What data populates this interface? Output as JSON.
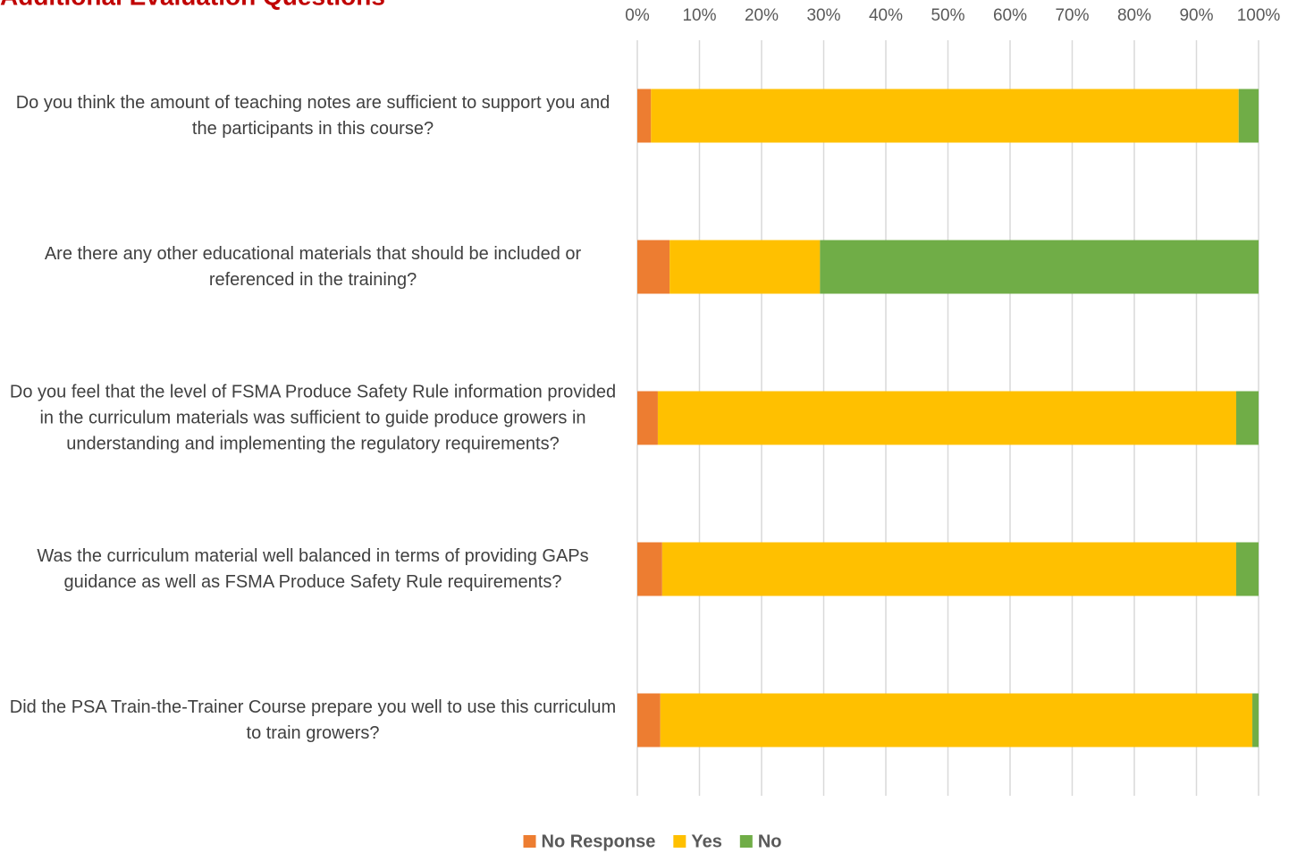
{
  "chart_data": {
    "type": "stacked_barh",
    "title": "Additional Evaluation Questions",
    "categories": [
      "Do you think the amount of teaching notes are sufficient to support you and the participants in this course?",
      "Are there any other educational materials that should be included or referenced in the training?",
      "Do you feel that the level of FSMA Produce Safety Rule information provided in the curriculum materials was sufficient to guide produce growers in understanding and implementing the regulatory requirements?",
      "Was the curriculum material well balanced in terms of providing GAPs guidance as well as FSMA Produce Safety Rule requirements?",
      "Did the PSA Train-the-Trainer Course prepare you well to use this curriculum to train growers?"
    ],
    "series": [
      {
        "name": "No Response",
        "color": "#ed7d31",
        "values": [
          2.2,
          5.2,
          3.3,
          4.0,
          3.7
        ]
      },
      {
        "name": "Yes",
        "color": "#ffc000",
        "values": [
          94.6,
          24.2,
          93.1,
          92.4,
          95.3
        ]
      },
      {
        "name": "No",
        "color": "#70ad47",
        "values": [
          3.2,
          70.6,
          3.6,
          3.6,
          1.0
        ]
      }
    ],
    "xlim": [
      0,
      100
    ],
    "xticks": [
      {
        "value": 0,
        "label": "0%"
      },
      {
        "value": 10,
        "label": "10%"
      },
      {
        "value": 20,
        "label": "20%"
      },
      {
        "value": 30,
        "label": "30%"
      },
      {
        "value": 40,
        "label": "40%"
      },
      {
        "value": 50,
        "label": "50%"
      },
      {
        "value": 60,
        "label": "60%"
      },
      {
        "value": 70,
        "label": "70%"
      },
      {
        "value": 80,
        "label": "80%"
      },
      {
        "value": 90,
        "label": "90%"
      },
      {
        "value": 100,
        "label": "100%"
      }
    ],
    "grid": true,
    "legend": "bottom"
  }
}
